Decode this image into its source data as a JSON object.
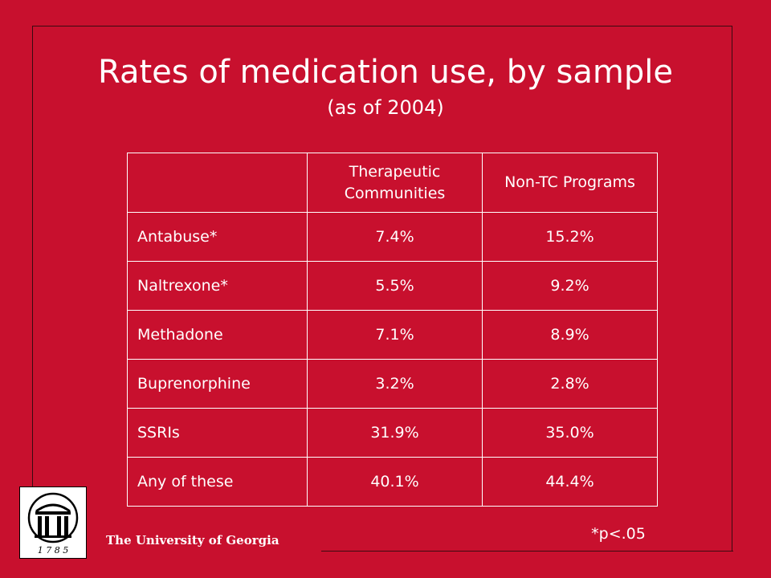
{
  "slide": {
    "title": "Rates of medication use, by sample",
    "subtitle": "(as of 2004)",
    "footnote": "*p<.05",
    "institution": "The University of Georgia",
    "logo_year": "1 7 8 5"
  },
  "table": {
    "headers": [
      "",
      "Therapeutic Communities",
      "Non-TC Programs"
    ],
    "rows": [
      [
        "Antabuse*",
        "7.4%",
        "15.2%"
      ],
      [
        "Naltrexone*",
        "5.5%",
        "9.2%"
      ],
      [
        "Methadone",
        "7.1%",
        "8.9%"
      ],
      [
        "Buprenorphine",
        "3.2%",
        "2.8%"
      ],
      [
        "SSRIs",
        "31.9%",
        "35.0%"
      ],
      [
        "Any of these",
        "40.1%",
        "44.4%"
      ]
    ]
  },
  "colors": {
    "background": "#c8102e",
    "text": "#ffffff"
  }
}
